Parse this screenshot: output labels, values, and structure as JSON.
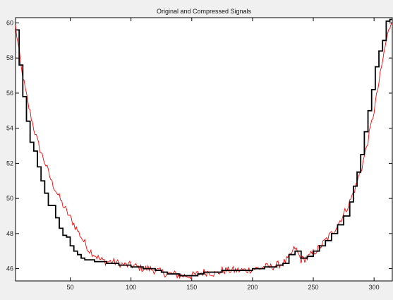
{
  "chart_data": {
    "type": "line",
    "title": "Original and Compressed Signals",
    "xlabel": "",
    "ylabel": "",
    "xlim": [
      5,
      315
    ],
    "ylim": [
      45.3,
      60.3
    ],
    "grid": false,
    "x_ticks": [
      50,
      100,
      150,
      200,
      250,
      300
    ],
    "y_ticks": [
      46,
      48,
      50,
      52,
      54,
      56,
      58,
      60
    ],
    "colors": {
      "original": "#ff0000",
      "compressed": "#000000",
      "axes_bg": "#ffffff",
      "figure_bg": "#f0f0f0"
    },
    "series": [
      {
        "style": "original (thin red, noisy)",
        "x": [
          5,
          10,
          15,
          20,
          25,
          30,
          35,
          40,
          45,
          50,
          55,
          60,
          65,
          70,
          75,
          80,
          85,
          90,
          95,
          100,
          105,
          110,
          115,
          120,
          125,
          130,
          135,
          140,
          145,
          150,
          155,
          160,
          165,
          170,
          175,
          180,
          185,
          190,
          195,
          200,
          205,
          210,
          215,
          220,
          225,
          230,
          235,
          240,
          245,
          250,
          255,
          260,
          265,
          270,
          275,
          280,
          285,
          290,
          295,
          300,
          305,
          310,
          315
        ],
        "y": [
          59.8,
          57.3,
          55.5,
          54.0,
          52.8,
          51.9,
          50.9,
          50.2,
          49.5,
          48.9,
          48.3,
          47.7,
          47.1,
          46.8,
          46.5,
          46.4,
          46.4,
          46.3,
          46.2,
          46.2,
          46.1,
          46.0,
          46.0,
          45.9,
          45.8,
          45.7,
          45.7,
          45.6,
          45.6,
          45.6,
          45.7,
          45.8,
          45.8,
          45.7,
          45.9,
          45.9,
          45.9,
          45.9,
          45.9,
          46.0,
          46.0,
          46.1,
          46.1,
          46.2,
          46.3,
          46.6,
          47.2,
          46.5,
          46.6,
          46.9,
          47.2,
          47.6,
          48.0,
          48.5,
          49.1,
          49.8,
          50.7,
          51.8,
          53.3,
          55.0,
          57.0,
          59.0,
          60.3
        ]
      },
      {
        "style": "compressed (thick black, piecewise constant)",
        "x": [
          5,
          8,
          11,
          14,
          17,
          20,
          23,
          26,
          29,
          32,
          35,
          38,
          41,
          44,
          47,
          50,
          53,
          56,
          59,
          62,
          65,
          70,
          75,
          80,
          85,
          90,
          95,
          100,
          105,
          110,
          115,
          120,
          125,
          130,
          135,
          140,
          145,
          150,
          155,
          160,
          165,
          170,
          175,
          180,
          185,
          190,
          195,
          200,
          205,
          210,
          215,
          220,
          225,
          230,
          235,
          240,
          245,
          250,
          255,
          260,
          265,
          270,
          275,
          280,
          283,
          286,
          289,
          292,
          295,
          298,
          301,
          304,
          307,
          310,
          313,
          315
        ],
        "y": [
          59.6,
          57.6,
          55.8,
          54.4,
          53.2,
          52.7,
          51.8,
          51.0,
          50.3,
          49.6,
          49.6,
          48.9,
          48.3,
          47.9,
          47.8,
          47.3,
          47.0,
          46.8,
          46.6,
          46.5,
          46.5,
          46.4,
          46.4,
          46.3,
          46.3,
          46.2,
          46.2,
          46.1,
          46.1,
          46.0,
          46.0,
          45.9,
          45.8,
          45.7,
          45.7,
          45.6,
          45.6,
          45.6,
          45.7,
          45.8,
          45.8,
          45.8,
          45.9,
          45.9,
          45.9,
          45.9,
          45.9,
          46.0,
          46.0,
          46.1,
          46.1,
          46.2,
          46.3,
          46.8,
          47.0,
          46.6,
          46.7,
          47.0,
          47.3,
          47.6,
          48.0,
          48.5,
          49.0,
          49.8,
          50.7,
          51.5,
          52.5,
          53.8,
          55.0,
          56.2,
          57.5,
          58.4,
          59.0,
          60.1,
          60.2,
          60.2
        ]
      }
    ]
  }
}
